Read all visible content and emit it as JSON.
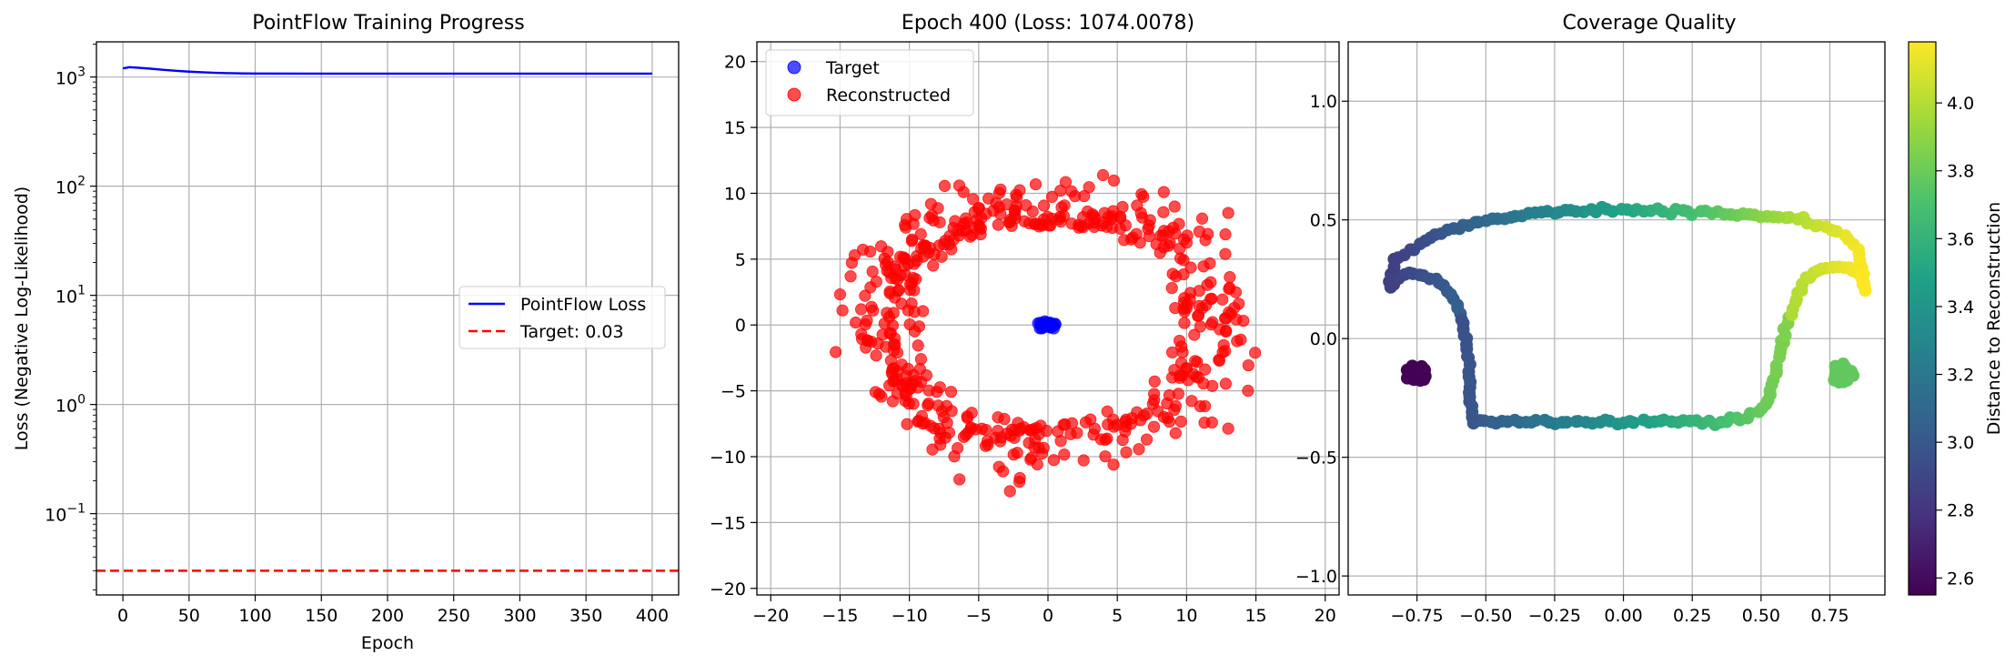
{
  "chart_data": [
    {
      "type": "line",
      "title": "PointFlow Training Progress",
      "xlabel": "Epoch",
      "ylabel": "Loss (Negative Log-Likelihood)",
      "yscale": "log",
      "xlim": [
        -20,
        420
      ],
      "ylim": [
        0.018,
        2100
      ],
      "x_ticks": [
        "0",
        "50",
        "100",
        "150",
        "200",
        "250",
        "300",
        "350",
        "400"
      ],
      "y_ticks": [
        {
          "base": "10",
          "exp": "−1"
        },
        {
          "base": "10",
          "exp": "0"
        },
        {
          "base": "10",
          "exp": "1"
        },
        {
          "base": "10",
          "exp": "2"
        },
        {
          "base": "10",
          "exp": "3"
        }
      ],
      "grid": true,
      "legend_position": "center-right",
      "series": [
        {
          "name": "PointFlow Loss",
          "color": "#0000ff",
          "style": "solid",
          "points": [
            [
              0,
              1200
            ],
            [
              5,
              1230
            ],
            [
              10,
              1220
            ],
            [
              20,
              1195
            ],
            [
              30,
              1165
            ],
            [
              40,
              1140
            ],
            [
              50,
              1120
            ],
            [
              60,
              1105
            ],
            [
              70,
              1092
            ],
            [
              80,
              1085
            ],
            [
              90,
              1080
            ],
            [
              100,
              1077
            ],
            [
              150,
              1075
            ],
            [
              200,
              1074.5
            ],
            [
              250,
              1074.2
            ],
            [
              300,
              1074.1
            ],
            [
              350,
              1074.0
            ],
            [
              400,
              1074.0
            ]
          ]
        },
        {
          "name": "Target: 0.03",
          "color": "#ff0000",
          "style": "dashed",
          "hline": 0.03
        }
      ]
    },
    {
      "type": "scatter",
      "title": "Epoch 400 (Loss: 1074.0078)",
      "xlim": [
        -21,
        21
      ],
      "ylim": [
        -20.5,
        21.5
      ],
      "x_ticks": [
        "−20",
        "−15",
        "−10",
        "−5",
        "0",
        "5",
        "10",
        "15",
        "20"
      ],
      "y_ticks": [
        "−20",
        "−15",
        "−10",
        "−5",
        "0",
        "5",
        "10",
        "15",
        "20"
      ],
      "grid": true,
      "legend_position": "top-left",
      "series": [
        {
          "name": "Target",
          "color": "#0000ff",
          "alpha": 0.7,
          "center": [
            0,
            0
          ],
          "spread": [
            1.2,
            0.5
          ],
          "n": 60
        },
        {
          "name": "Reconstructed",
          "color": "#ff0000",
          "alpha": 0.7,
          "shape": "ring",
          "n": 520,
          "radius_range": [
            9,
            20
          ]
        }
      ]
    },
    {
      "type": "scatter",
      "title": "Coverage Quality",
      "xlim": [
        -1.0,
        0.95
      ],
      "ylim": [
        -1.08,
        1.25
      ],
      "x_ticks": [
        "−0.75",
        "−0.50",
        "−0.25",
        "0.00",
        "0.25",
        "0.50",
        "0.75"
      ],
      "y_ticks": [
        "−1.0",
        "−0.5",
        "0.0",
        "0.5",
        "1.0"
      ],
      "grid": true,
      "colorbar": {
        "label": "Distance to Reconstruction",
        "colormap": "viridis",
        "range": [
          2.55,
          4.18
        ],
        "ticks": [
          "2.6",
          "2.8",
          "3.0",
          "3.2",
          "3.4",
          "3.6",
          "3.8",
          "4.0"
        ]
      },
      "description": "closed U-shaped path plus two blobs, color by distance",
      "path": [
        [
          -0.55,
          -0.35
        ],
        [
          -0.4,
          -0.35
        ],
        [
          -0.2,
          -0.35
        ],
        [
          0.0,
          -0.35
        ],
        [
          0.2,
          -0.35
        ],
        [
          0.35,
          -0.35
        ],
        [
          0.45,
          -0.33
        ],
        [
          0.52,
          -0.28
        ],
        [
          0.55,
          -0.15
        ],
        [
          0.58,
          0.0
        ],
        [
          0.62,
          0.15
        ],
        [
          0.66,
          0.25
        ],
        [
          0.72,
          0.3
        ],
        [
          0.8,
          0.3
        ],
        [
          0.86,
          0.28
        ],
        [
          0.88,
          0.2
        ],
        [
          0.85,
          0.38
        ],
        [
          0.78,
          0.45
        ],
        [
          0.65,
          0.5
        ],
        [
          0.5,
          0.52
        ],
        [
          0.3,
          0.53
        ],
        [
          0.1,
          0.54
        ],
        [
          -0.1,
          0.54
        ],
        [
          -0.3,
          0.53
        ],
        [
          -0.5,
          0.5
        ],
        [
          -0.7,
          0.43
        ],
        [
          -0.83,
          0.33
        ],
        [
          -0.85,
          0.22
        ],
        [
          -0.78,
          0.28
        ],
        [
          -0.68,
          0.25
        ],
        [
          -0.6,
          0.15
        ],
        [
          -0.57,
          0.0
        ],
        [
          -0.56,
          -0.2
        ],
        [
          -0.55,
          -0.35
        ]
      ],
      "blobs": [
        {
          "center": [
            -0.75,
            -0.15
          ],
          "color_value": 2.56
        },
        {
          "center": [
            0.8,
            -0.15
          ],
          "color_value": 3.78
        }
      ]
    }
  ]
}
